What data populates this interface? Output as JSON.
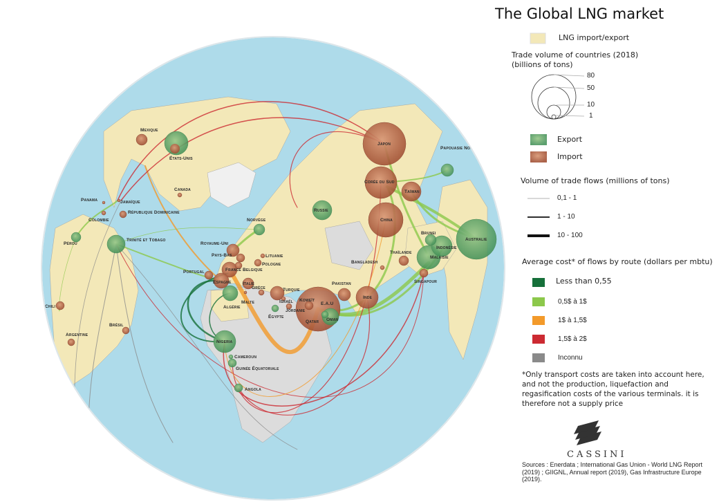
{
  "title": "The Global LNG market",
  "legend": {
    "area_label": "LNG import/export",
    "area_color": "#f3e8b8",
    "volume_title": "Trade volume of countries (2018)",
    "volume_unit": "(billions of tons)",
    "volume_scale": [
      "80",
      "50",
      "10",
      "1"
    ],
    "export_label": "Export",
    "export_color": "#5fa56f",
    "import_label": "Import",
    "import_color": "#b56b60",
    "flows_title": "Volume of trade flows (millions of tons)",
    "flow_classes": [
      "0,1 - 1",
      "1 - 10",
      "10 - 100"
    ],
    "cost_title": "Average cost* of flows by route (dollars per mbtu)",
    "cost_classes": [
      {
        "label": "Less than 0,55",
        "color": "#16703a"
      },
      {
        "label": "0,5$ à 1$",
        "color": "#8cc84b"
      },
      {
        "label": "1$ à 1,5$",
        "color": "#f39a2a"
      },
      {
        "label": "1,5$ à 2$",
        "color": "#cc2a32"
      },
      {
        "label": "Inconnu",
        "color": "#8a8a8a"
      }
    ],
    "note": "*Only transport costs are taken into account here, and not the production, liquefaction and regasification costs of the various terminals. it is therefore not a supply price"
  },
  "logo": "CASSINI",
  "sources": "Sources : Enerdata ; International Gas Union - World LNG Report (2019) ; GIIGNL, Annual report (2019), Gas Infrastructure Europe (2019).",
  "countries": [
    {
      "name": "Mexique",
      "type": "import"
    },
    {
      "name": "États-Unis",
      "type": "export"
    },
    {
      "name": "Canada",
      "type": "import"
    },
    {
      "name": "Panama",
      "type": "import"
    },
    {
      "name": "Jamaïque",
      "type": "import"
    },
    {
      "name": "République Dominicaine",
      "type": "import"
    },
    {
      "name": "Colombie",
      "type": "import"
    },
    {
      "name": "Pérou",
      "type": "export"
    },
    {
      "name": "Trinité et Tobago",
      "type": "export"
    },
    {
      "name": "Chili",
      "type": "import"
    },
    {
      "name": "Brésil",
      "type": "import"
    },
    {
      "name": "Argentine",
      "type": "import"
    },
    {
      "name": "Royaume-Uni",
      "type": "import"
    },
    {
      "name": "Norvège",
      "type": "export"
    },
    {
      "name": "Pays-Bas",
      "type": "import"
    },
    {
      "name": "France",
      "type": "import"
    },
    {
      "name": "Belgique",
      "type": "import"
    },
    {
      "name": "Portugal",
      "type": "import"
    },
    {
      "name": "Espagne",
      "type": "import"
    },
    {
      "name": "Lituanie",
      "type": "import"
    },
    {
      "name": "Pologne",
      "type": "import"
    },
    {
      "name": "Italie",
      "type": "import"
    },
    {
      "name": "Algérie",
      "type": "export"
    },
    {
      "name": "Grèce",
      "type": "import"
    },
    {
      "name": "Malte",
      "type": "import"
    },
    {
      "name": "Turquie",
      "type": "import"
    },
    {
      "name": "Israël",
      "type": "import"
    },
    {
      "name": "Égypte",
      "type": "export"
    },
    {
      "name": "Jordanie",
      "type": "import"
    },
    {
      "name": "Koweït",
      "type": "import"
    },
    {
      "name": "E.A.U",
      "type": "import"
    },
    {
      "name": "Qatar",
      "type": "export"
    },
    {
      "name": "Oman",
      "type": "export"
    },
    {
      "name": "Pakistan",
      "type": "import"
    },
    {
      "name": "Inde",
      "type": "import"
    },
    {
      "name": "Nigeria",
      "type": "export"
    },
    {
      "name": "Cameroun",
      "type": "export"
    },
    {
      "name": "Guinée Équatoriale",
      "type": "export"
    },
    {
      "name": "Angola",
      "type": "export"
    },
    {
      "name": "Russie",
      "type": "export"
    },
    {
      "name": "Japon",
      "type": "import"
    },
    {
      "name": "Corée du Sud",
      "type": "import"
    },
    {
      "name": "Taïwan",
      "type": "import"
    },
    {
      "name": "China",
      "type": "import"
    },
    {
      "name": "Papouasie Nouvelle Guinée",
      "type": "export"
    },
    {
      "name": "Australie",
      "type": "export"
    },
    {
      "name": "Brunei",
      "type": "export"
    },
    {
      "name": "Indonésie",
      "type": "export"
    },
    {
      "name": "Malaisie",
      "type": "export"
    },
    {
      "name": "Thaïlande",
      "type": "import"
    },
    {
      "name": "Bangladesh",
      "type": "import"
    },
    {
      "name": "Singapour",
      "type": "import"
    }
  ]
}
